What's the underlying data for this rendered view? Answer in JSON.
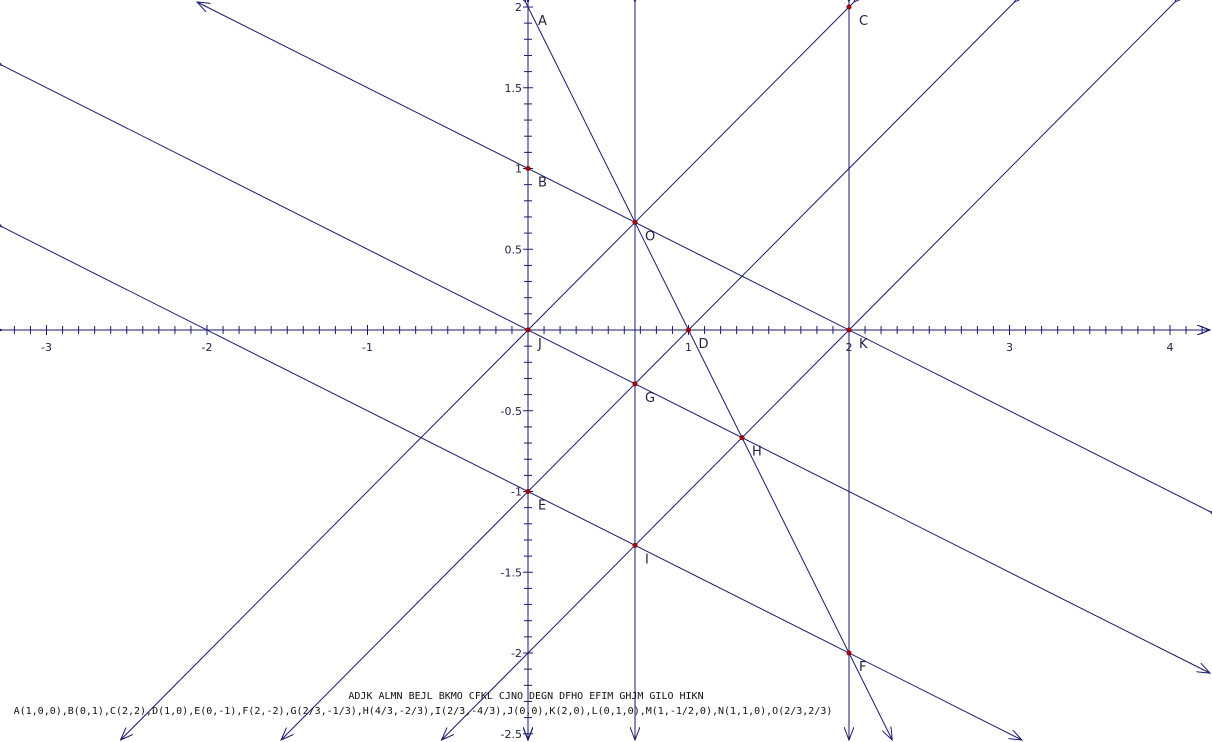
{
  "colors": {
    "line": "#1a1a6e",
    "point": "#b00000",
    "text": "#222244",
    "background": "#ffffff"
  },
  "axes": {
    "x_ticks": [
      {
        "v": -3,
        "label": "-3"
      },
      {
        "v": -2,
        "label": "-2"
      },
      {
        "v": -1,
        "label": "-1"
      },
      {
        "v": 1,
        "label": "1"
      },
      {
        "v": 2,
        "label": "2"
      },
      {
        "v": 3,
        "label": "3"
      },
      {
        "v": 4,
        "label": "4"
      }
    ],
    "y_ticks": [
      {
        "v": 2,
        "label": "2"
      },
      {
        "v": 1.5,
        "label": "1.5"
      },
      {
        "v": 1,
        "label": "1"
      },
      {
        "v": 0.5,
        "label": "0.5"
      },
      {
        "v": -0.5,
        "label": "-0.5"
      },
      {
        "v": -1,
        "label": "-1"
      },
      {
        "v": -1.5,
        "label": "-1.5"
      },
      {
        "v": -2,
        "label": "-2"
      },
      {
        "v": -2.5,
        "label": "-2.5"
      }
    ],
    "x_range": [
      -3.28,
      4.22
    ],
    "y_range": [
      -2.5,
      2.02
    ]
  },
  "points": [
    {
      "label": "A",
      "x": 0,
      "y": 2,
      "marker": false
    },
    {
      "label": "B",
      "x": 0,
      "y": 1,
      "marker": true
    },
    {
      "label": "C",
      "x": 2,
      "y": 2,
      "marker": true
    },
    {
      "label": "D",
      "x": 1,
      "y": 0,
      "marker": true
    },
    {
      "label": "E",
      "x": 0,
      "y": -1,
      "marker": true
    },
    {
      "label": "F",
      "x": 2,
      "y": -2,
      "marker": true
    },
    {
      "label": "G",
      "x": 0.6667,
      "y": -0.3333,
      "marker": true
    },
    {
      "label": "H",
      "x": 1.3333,
      "y": -0.6667,
      "marker": true
    },
    {
      "label": "I",
      "x": 0.6667,
      "y": -1.3333,
      "marker": true
    },
    {
      "label": "J",
      "x": 0,
      "y": 0,
      "marker": true
    },
    {
      "label": "K",
      "x": 2,
      "y": 0,
      "marker": true
    },
    {
      "label": "O",
      "x": 0.6667,
      "y": 0.6667,
      "marker": true
    }
  ],
  "lines": [
    {
      "name": "ADJK",
      "a": 0,
      "b": 1,
      "c": 0
    },
    {
      "name": "ALMN",
      "a": 1,
      "b": 0,
      "c": 0
    },
    {
      "name": "BEJL",
      "a": 1,
      "b": 0,
      "c": 0
    },
    {
      "name": "BKMO",
      "a": 1,
      "b": 2,
      "c": -2
    },
    {
      "name": "CFKL",
      "a": 1,
      "b": 0,
      "c": -2
    },
    {
      "name": "CJNO",
      "a": 1,
      "b": -1,
      "c": 0
    },
    {
      "name": "DEGN",
      "a": 1,
      "b": -1,
      "c": -1
    },
    {
      "name": "DFHO",
      "a": 2,
      "b": 1,
      "c": -2
    },
    {
      "name": "EFIM",
      "a": 1,
      "b": 2,
      "c": 2
    },
    {
      "name": "GHJM",
      "a": 1,
      "b": 2,
      "c": 0
    },
    {
      "name": "GILO",
      "a": 1,
      "b": 0,
      "c": -0.6667
    },
    {
      "name": "HIKN",
      "a": 1,
      "b": -1,
      "c": -2
    }
  ],
  "caption": {
    "line_names": "ADJK ALMN BEJL BKMO CFKL CJNO DEGN DFHO EFIM GHJM GILO HIKN",
    "coordinates": "A(1,0,0),B(0,1),C(2,2),D(1,0),E(0,-1),F(2,-2),G(2/3,-1/3),H(4/3,-2/3),I(2/3,-4/3),J(0,0),K(2,0),L(0,1,0),M(1,-1/2,0),N(1,1,0),O(2/3,2/3)"
  }
}
